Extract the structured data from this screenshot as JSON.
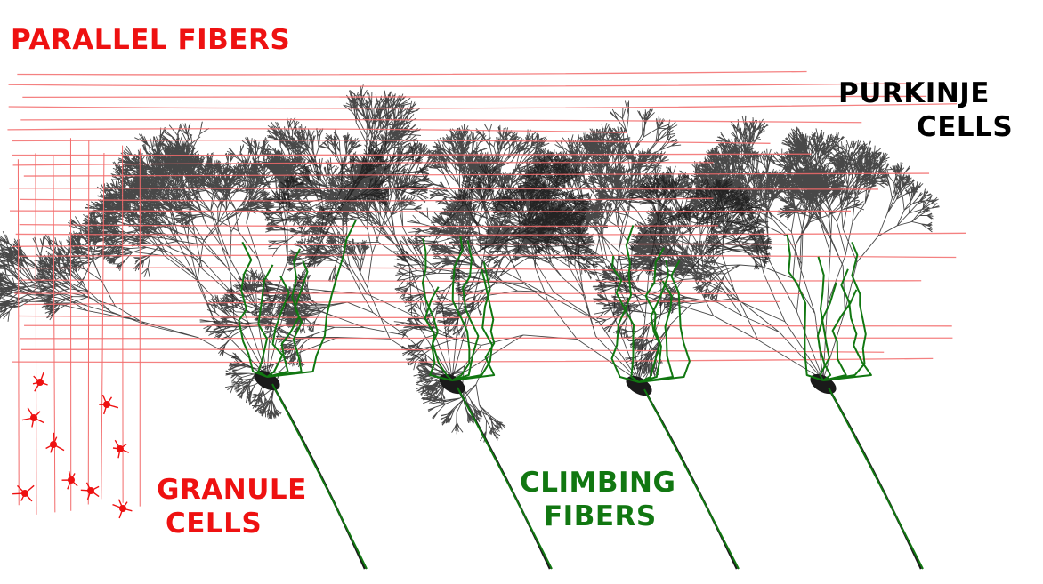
{
  "labels": {
    "parallel_fibers": "PARALLEL FIBERS",
    "purkinje_line1": "PURKINJE",
    "purkinje_line2": "CELLS",
    "granule_line1": "GRANULE",
    "granule_line2": "CELLS",
    "climbing_line1": "CLIMBING",
    "climbing_line2": "FIBERS"
  },
  "colors": {
    "parallel_fibers": "#f26b6b",
    "granule_cells": "#ee1111",
    "purkinje_cells": "#1a1a1a",
    "climbing_fibers": "#117711",
    "label_red": "#ee1111",
    "label_black": "#000000",
    "label_green": "#117711",
    "background": "#ffffff"
  }
}
